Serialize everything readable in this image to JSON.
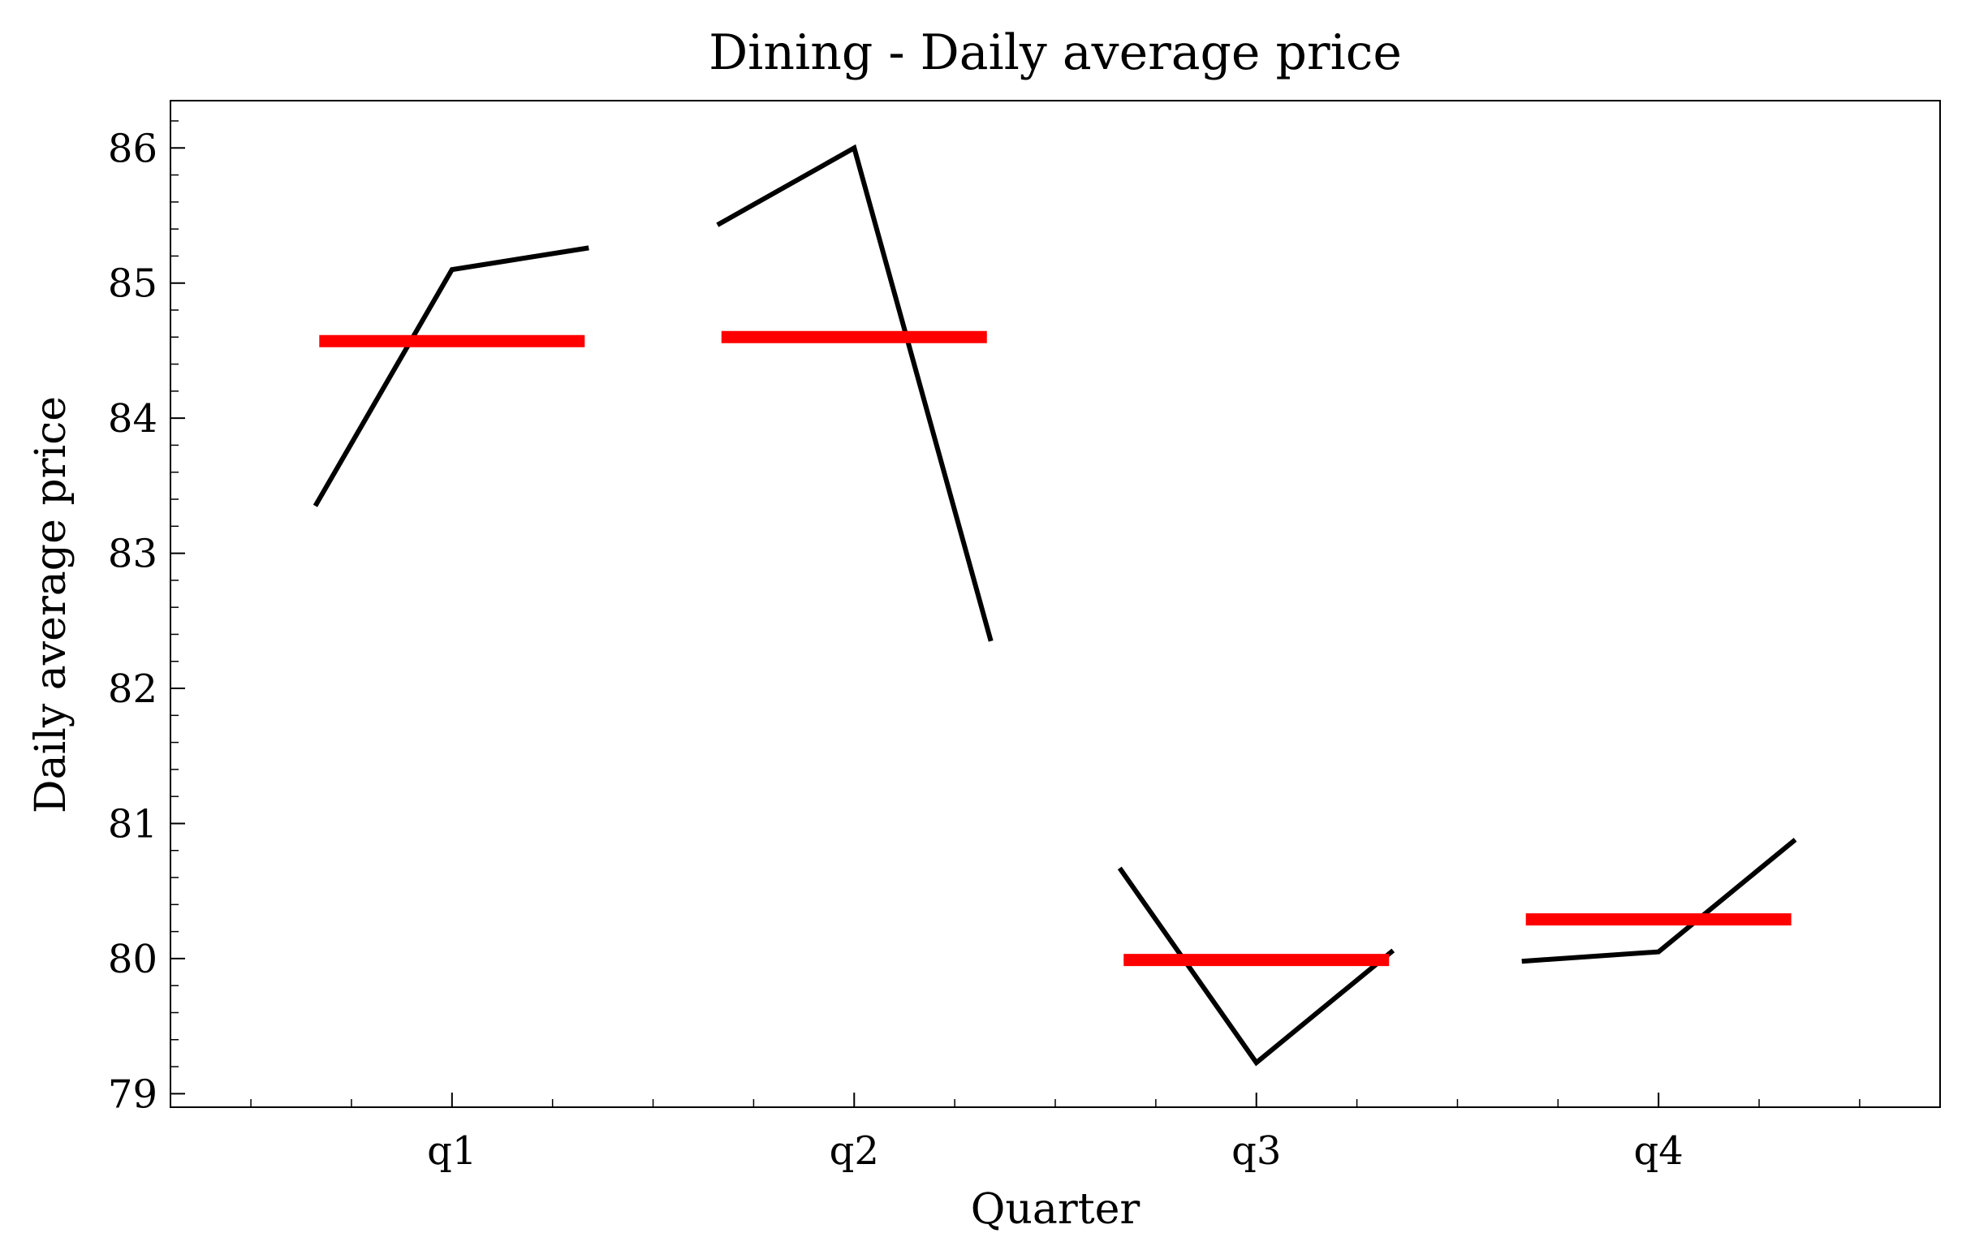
{
  "chart_data": {
    "type": "line",
    "title": "Dining - Daily average price",
    "xlabel": "Quarter",
    "ylabel": "Daily average price",
    "categories": [
      "q1",
      "q2",
      "q3",
      "q4"
    ],
    "ylim": [
      78.9,
      86.35
    ],
    "yticks": [
      79,
      80,
      81,
      82,
      83,
      84,
      85,
      86
    ],
    "grid": false,
    "legend": "none",
    "series": [
      {
        "color": "#000000",
        "segments": [
          {
            "category": "q1",
            "values": [
              83.35,
              85.1,
              85.26
            ]
          },
          {
            "category": "q2",
            "values": [
              85.43,
              86.0,
              82.35
            ]
          },
          {
            "category": "q3",
            "values": [
              80.67,
              79.23,
              80.06
            ]
          },
          {
            "category": "q4",
            "values": [
              79.98,
              80.05,
              80.88
            ]
          }
        ]
      },
      {
        "color": "#ff0000",
        "segments": [
          {
            "category": "q1",
            "value": 84.57
          },
          {
            "category": "q2",
            "value": 84.6
          },
          {
            "category": "q3",
            "value": 79.99
          },
          {
            "category": "q4",
            "value": 80.29
          }
        ]
      }
    ]
  }
}
